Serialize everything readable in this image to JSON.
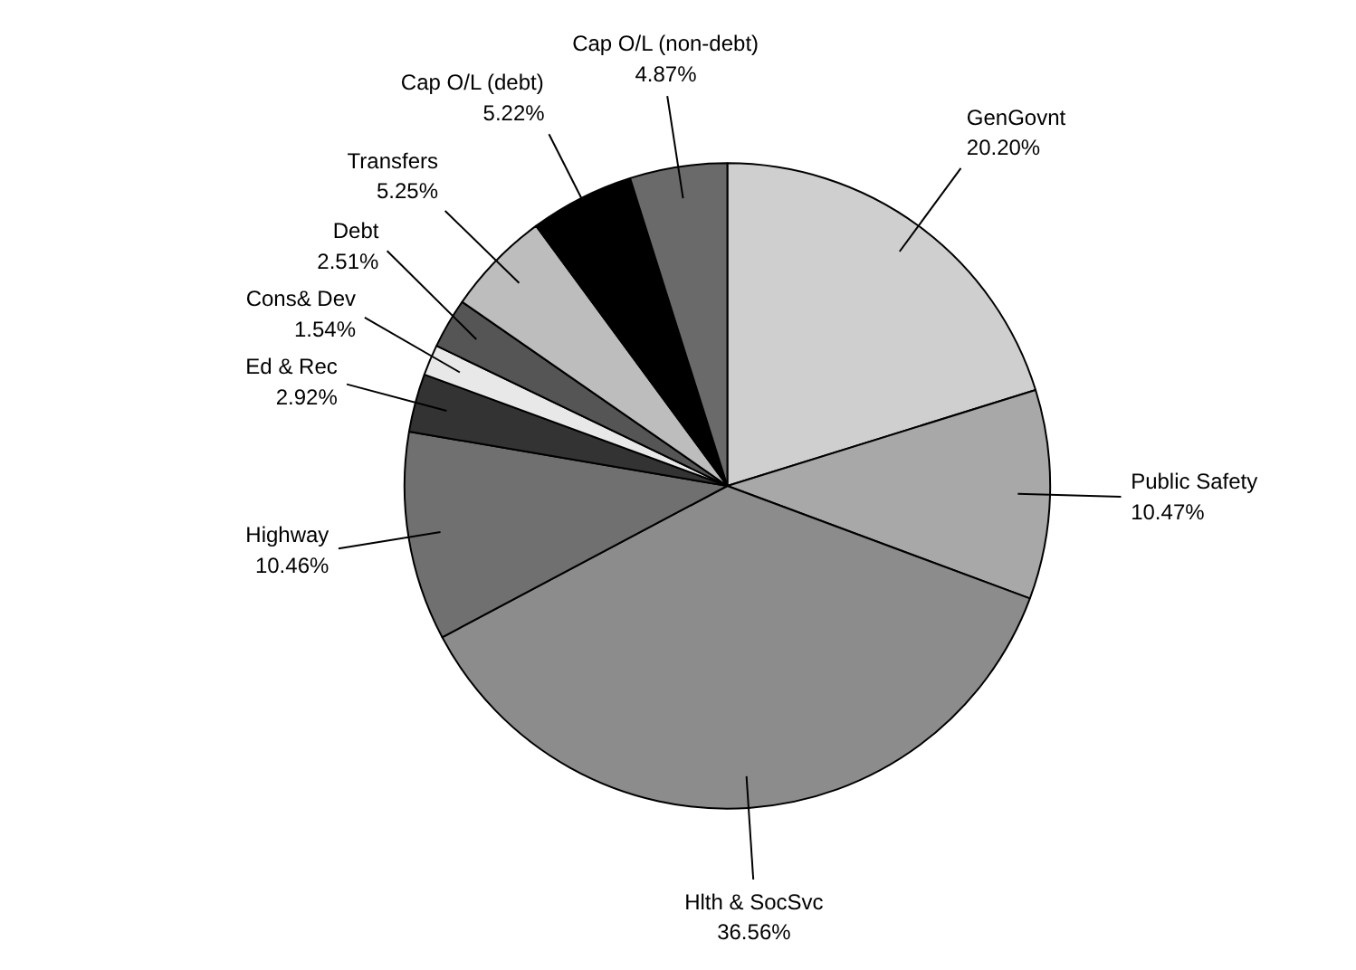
{
  "chart_data": {
    "type": "pie",
    "categories": [
      "GenGovnt",
      "Public Safety",
      "Hlth & SocSvc",
      "Highway",
      "Ed & Rec",
      "Cons& Dev",
      "Debt",
      "Transfers",
      "Cap O/L (debt)",
      "Cap O/L (non-debt)"
    ],
    "values": [
      20.2,
      10.47,
      36.56,
      10.46,
      2.92,
      1.54,
      2.51,
      5.25,
      5.22,
      4.87
    ],
    "value_labels": [
      "20.20%",
      "10.47%",
      "36.56%",
      "10.46%",
      "2.92%",
      "1.54%",
      "2.51%",
      "5.25%",
      "5.22%",
      "4.87%"
    ],
    "colors": [
      "#cfcfcf",
      "#a8a8a8",
      "#8c8c8c",
      "#707070",
      "#333333",
      "#e8e8e8",
      "#555555",
      "#bdbdbd",
      "#000000",
      "#6a6a6a"
    ]
  }
}
